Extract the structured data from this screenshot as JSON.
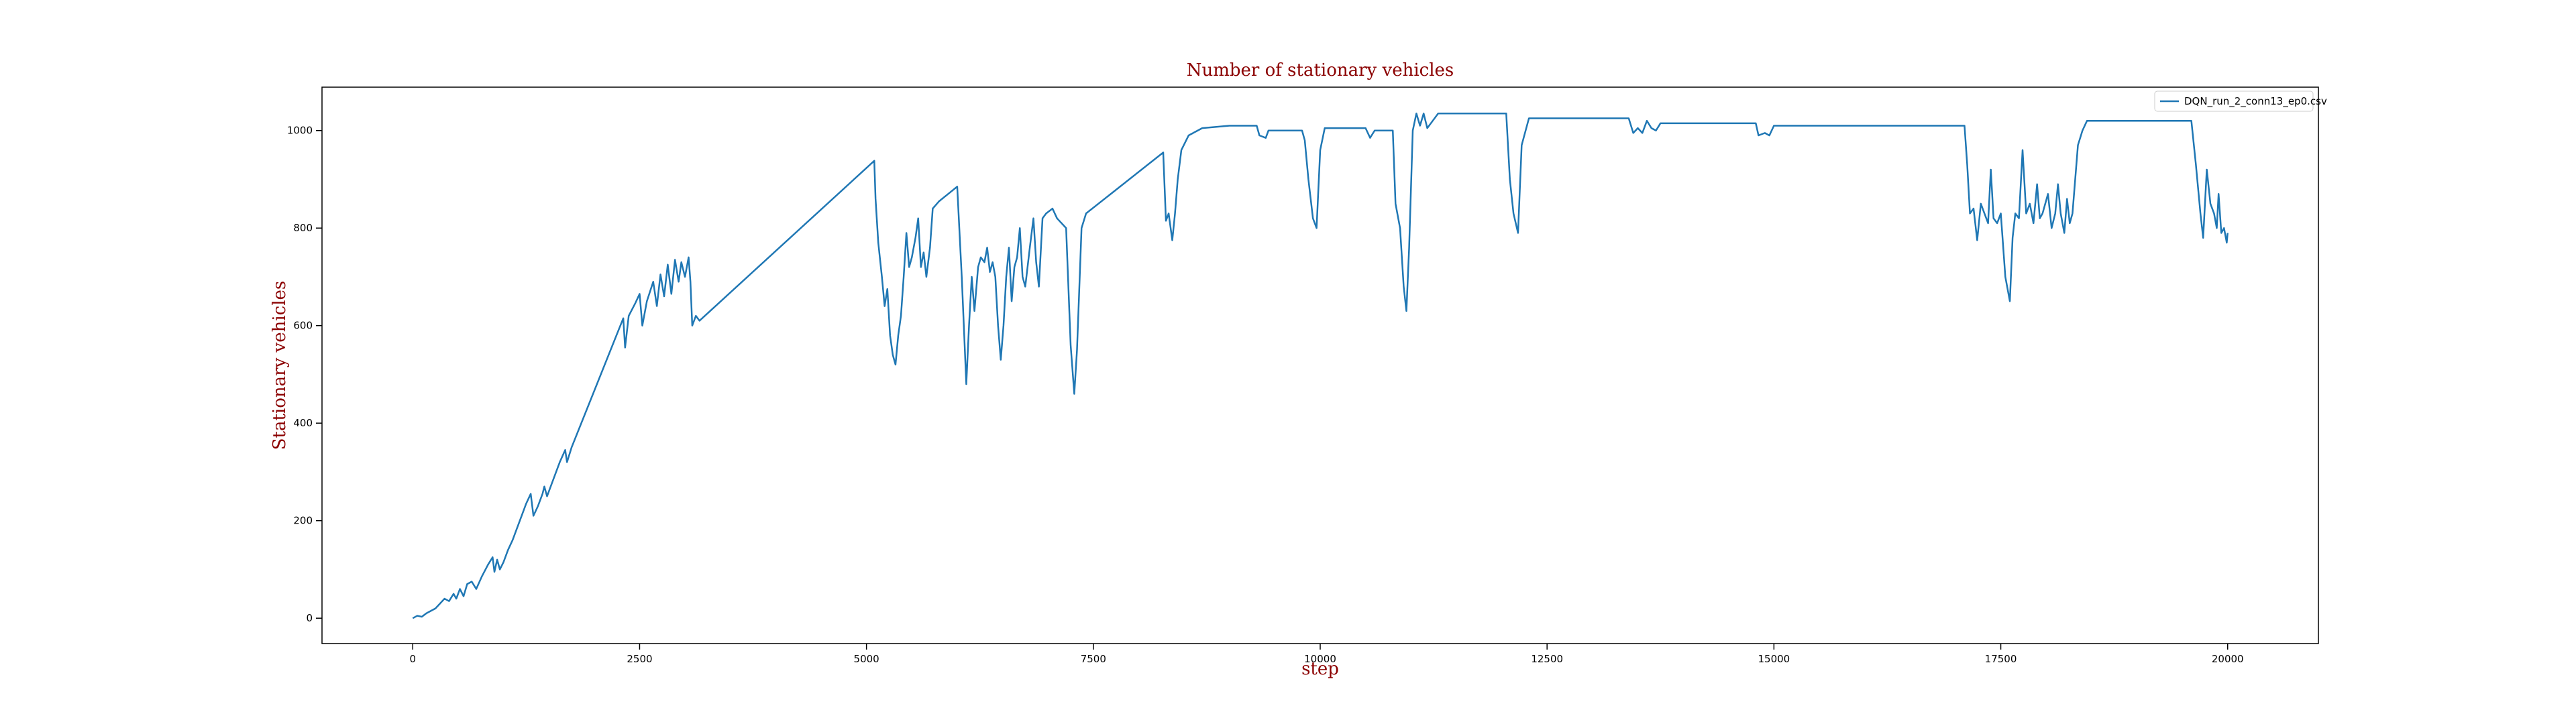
{
  "chart_data": {
    "type": "line",
    "title": "Number of stationary vehicles",
    "x_label": "step",
    "y_label": "Stationary vehicles",
    "legend": "upper right",
    "xlim": [
      -1000,
      21000
    ],
    "ylim": [
      -52,
      1089
    ],
    "xticks": [
      0,
      2500,
      5000,
      7500,
      10000,
      12500,
      15000,
      17500,
      20000
    ],
    "yticks": [
      0,
      200,
      400,
      600,
      800,
      1000
    ],
    "series": [
      {
        "name": "DQN_run_2_conn13_ep0.csv",
        "color": "#1f77b4",
        "x": [
          0,
          50,
          100,
          150,
          200,
          250,
          300,
          350,
          400,
          450,
          480,
          520,
          560,
          600,
          650,
          700,
          760,
          830,
          880,
          900,
          930,
          960,
          1000,
          1050,
          1100,
          1150,
          1200,
          1250,
          1300,
          1330,
          1380,
          1430,
          1450,
          1480,
          1550,
          1620,
          1680,
          1700,
          1750,
          2320,
          2340,
          2380,
          2450,
          2500,
          2530,
          2580,
          2650,
          2690,
          2730,
          2770,
          2810,
          2850,
          2890,
          2930,
          2960,
          3000,
          3040,
          3060,
          3080,
          3120,
          3160,
          5086,
          5100,
          5130,
          5170,
          5200,
          5230,
          5260,
          5290,
          5320,
          5350,
          5380,
          5410,
          5440,
          5470,
          5500,
          5540,
          5570,
          5600,
          5630,
          5660,
          5700,
          5730,
          5800,
          5900,
          6000,
          6050,
          6100,
          6130,
          6160,
          6190,
          6230,
          6260,
          6300,
          6330,
          6360,
          6390,
          6420,
          6450,
          6480,
          6510,
          6540,
          6570,
          6600,
          6630,
          6660,
          6690,
          6720,
          6750,
          6800,
          6840,
          6870,
          6900,
          6940,
          6980,
          7050,
          7100,
          7200,
          7250,
          7290,
          7320,
          7370,
          7420,
          8270,
          8300,
          8330,
          8370,
          8400,
          8430,
          8470,
          8550,
          8700,
          9000,
          9300,
          9330,
          9400,
          9430,
          9800,
          9830,
          9870,
          9920,
          9960,
          10000,
          10050,
          10500,
          10550,
          10600,
          10800,
          10830,
          10880,
          10920,
          10950,
          10980,
          11020,
          11060,
          11100,
          11140,
          11180,
          11240,
          11300,
          12050,
          12090,
          12130,
          12180,
          12220,
          12300,
          13400,
          13450,
          13500,
          13550,
          13600,
          13650,
          13700,
          13750,
          14800,
          14830,
          14900,
          14950,
          15000,
          17100,
          17130,
          17160,
          17200,
          17240,
          17280,
          17320,
          17360,
          17390,
          17420,
          17460,
          17500,
          17550,
          17600,
          17630,
          17660,
          17700,
          17740,
          17780,
          17820,
          17860,
          17900,
          17930,
          17960,
          17990,
          18020,
          18060,
          18100,
          18130,
          18160,
          18200,
          18230,
          18260,
          18290,
          18350,
          18400,
          18450,
          19600,
          19650,
          19700,
          19730,
          19770,
          19810,
          19850,
          19880,
          19900,
          19930,
          19960,
          19990,
          20000
        ],
        "values": [
          0,
          5,
          3,
          10,
          15,
          20,
          30,
          40,
          35,
          50,
          40,
          60,
          45,
          70,
          75,
          60,
          85,
          110,
          125,
          95,
          120,
          100,
          115,
          140,
          160,
          185,
          210,
          235,
          255,
          210,
          230,
          255,
          270,
          250,
          285,
          320,
          345,
          320,
          350,
          615,
          555,
          620,
          645,
          665,
          600,
          650,
          690,
          640,
          705,
          660,
          725,
          665,
          735,
          690,
          730,
          700,
          740,
          690,
          600,
          620,
          610,
          938,
          860,
          770,
          700,
          640,
          675,
          580,
          540,
          520,
          580,
          620,
          700,
          790,
          720,
          740,
          780,
          820,
          720,
          750,
          700,
          760,
          840,
          855,
          870,
          885,
          700,
          480,
          600,
          700,
          630,
          720,
          740,
          730,
          760,
          710,
          730,
          700,
          600,
          530,
          600,
          700,
          760,
          650,
          720,
          740,
          800,
          700,
          680,
          760,
          820,
          730,
          680,
          820,
          830,
          840,
          820,
          800,
          560,
          460,
          550,
          800,
          830,
          955,
          815,
          830,
          775,
          830,
          900,
          960,
          990,
          1005,
          1010,
          1010,
          990,
          985,
          1000,
          1000,
          980,
          900,
          820,
          800,
          960,
          1005,
          1005,
          985,
          1000,
          1000,
          850,
          800,
          680,
          630,
          760,
          1000,
          1035,
          1010,
          1035,
          1005,
          1020,
          1035,
          1035,
          900,
          830,
          790,
          970,
          1025,
          1025,
          995,
          1005,
          995,
          1020,
          1005,
          1000,
          1015,
          1015,
          990,
          995,
          990,
          1010,
          1010,
          930,
          830,
          840,
          775,
          850,
          830,
          810,
          920,
          820,
          810,
          830,
          700,
          650,
          780,
          830,
          820,
          960,
          830,
          850,
          810,
          890,
          820,
          830,
          850,
          870,
          800,
          830,
          890,
          830,
          790,
          860,
          810,
          830,
          970,
          1000,
          1020,
          1020,
          930,
          830,
          780,
          920,
          850,
          830,
          800,
          870,
          790,
          800,
          770,
          790
        ]
      }
    ]
  }
}
